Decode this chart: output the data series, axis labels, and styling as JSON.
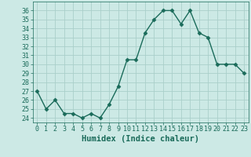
{
  "x": [
    0,
    1,
    2,
    3,
    4,
    5,
    6,
    7,
    8,
    9,
    10,
    11,
    12,
    13,
    14,
    15,
    16,
    17,
    18,
    19,
    20,
    21,
    22,
    23
  ],
  "y": [
    27,
    25,
    26,
    24.5,
    24.5,
    24,
    24.5,
    24,
    25.5,
    27.5,
    30.5,
    30.5,
    33.5,
    35,
    36,
    36,
    34.5,
    36,
    33.5,
    33,
    30,
    30,
    30,
    29
  ],
  "line_color": "#1a6b5a",
  "marker_color": "#1a6b5a",
  "bg_color": "#cce9e5",
  "grid_color": "#aacfca",
  "xlabel": "Humidex (Indice chaleur)",
  "ylim": [
    23.5,
    37
  ],
  "xlim": [
    -0.5,
    23.5
  ],
  "yticks": [
    24,
    25,
    26,
    27,
    28,
    29,
    30,
    31,
    32,
    33,
    34,
    35,
    36
  ],
  "xticks": [
    0,
    1,
    2,
    3,
    4,
    5,
    6,
    7,
    8,
    9,
    10,
    11,
    12,
    13,
    14,
    15,
    16,
    17,
    18,
    19,
    20,
    21,
    22,
    23
  ],
  "tick_label_fontsize": 6,
  "xlabel_fontsize": 7.5,
  "marker_size": 2.5,
  "line_width": 1.0
}
